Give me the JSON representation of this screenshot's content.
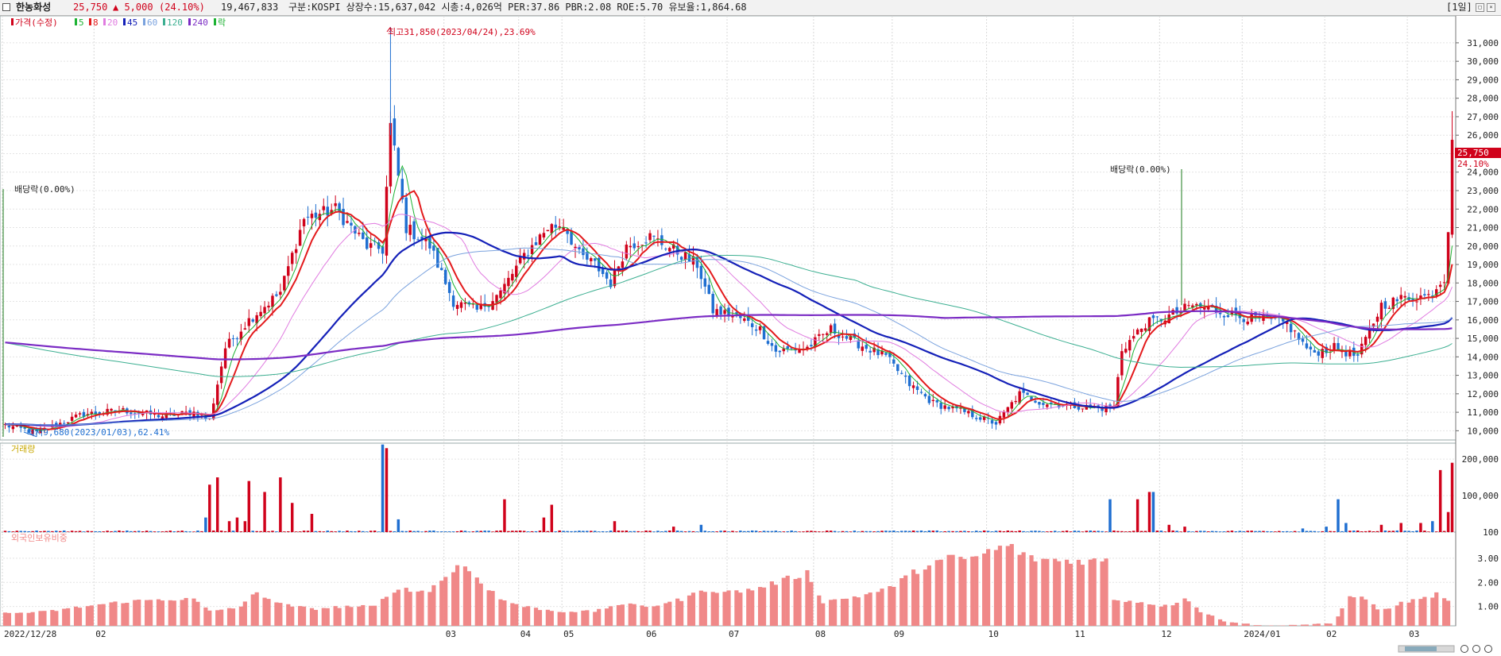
{
  "header": {
    "name": "한농화성",
    "price": "25,750",
    "change": "▲ 5,000",
    "change_pct": "(24.10%)",
    "volume": "19,467,833",
    "info": "구분:KOSPI 상장수:15,637,042 시총:4,026억 PER:37.86 PBR:2.08 ROE:5.70 유보율:1,864.68",
    "period": "[1일]"
  },
  "colors": {
    "up": "#d0021b",
    "down": "#1f6fd1",
    "ma5": "#1db233",
    "ma8": "#e31a1c",
    "ma20": "#e07be0",
    "ma45": "#1420b8",
    "ma60": "#7aa2de",
    "ma120": "#3caf91",
    "ma240": "#7b2cc4",
    "foreign": "#f08888"
  },
  "legend": [
    {
      "label": "가격(수정)",
      "color": "#d0021b"
    },
    {
      "label": "5",
      "color": "#1db233"
    },
    {
      "label": "8",
      "color": "#e31a1c"
    },
    {
      "label": "20",
      "color": "#e07be0"
    },
    {
      "label": "45",
      "color": "#1420b8"
    },
    {
      "label": "60",
      "color": "#7aa2de"
    },
    {
      "label": "120",
      "color": "#3caf91"
    },
    {
      "label": "240",
      "color": "#7b2cc4"
    },
    {
      "label": "락",
      "color": "#1db233"
    }
  ],
  "annotations": {
    "high": "최고31,850(2023/04/24),23.69%",
    "low": "최저9,680(2023/01/03),62.41%",
    "ex_div_1": "배당락(0.00%)",
    "ex_div_2": "배당락(0.00%)",
    "last_price_tag": "25,750",
    "last_pct_tag": "24.10%"
  },
  "panel_labels": {
    "volume": "거래량",
    "foreign": "외국인보유비중"
  },
  "chart_data": [
    {
      "type": "candlestick",
      "title": "",
      "y_ticks": [
        10000,
        11000,
        12000,
        13000,
        14000,
        15000,
        16000,
        17000,
        18000,
        19000,
        20000,
        21000,
        22000,
        23000,
        24000,
        25000,
        26000,
        27000,
        28000,
        29000,
        30000,
        31000
      ],
      "y_tick_labels": [
        "10,000",
        "11,000",
        "12,000",
        "13,000",
        "14,000",
        "15,000",
        "16,000",
        "17,000",
        "18,000",
        "19,000",
        "20,000",
        "21,000",
        "22,000",
        "23,000",
        "24,000",
        "25,000",
        "26,000",
        "27,000",
        "28,000",
        "29,000",
        "30,000",
        "31,000"
      ],
      "x_tick_labels": [
        "2022/12/28",
        "02",
        "03",
        "04",
        "05",
        "06",
        "07",
        "08",
        "09",
        "10",
        "11",
        "12",
        "2024/01",
        "02",
        "03"
      ],
      "anchors_close": [
        [
          0,
          10300
        ],
        [
          8,
          9900
        ],
        [
          20,
          10900
        ],
        [
          30,
          11100
        ],
        [
          40,
          10800
        ],
        [
          48,
          11000
        ],
        [
          52,
          10600
        ],
        [
          56,
          14500
        ],
        [
          62,
          16000
        ],
        [
          70,
          17500
        ],
        [
          76,
          21500
        ],
        [
          84,
          22000
        ],
        [
          92,
          20000
        ],
        [
          96,
          19800
        ],
        [
          98,
          26500
        ],
        [
          102,
          21000
        ],
        [
          108,
          20000
        ],
        [
          114,
          17000
        ],
        [
          120,
          16500
        ],
        [
          126,
          17500
        ],
        [
          132,
          19500
        ],
        [
          138,
          21000
        ],
        [
          142,
          21200
        ],
        [
          146,
          19500
        ],
        [
          150,
          19000
        ],
        [
          154,
          18000
        ],
        [
          158,
          20000
        ],
        [
          164,
          20500
        ],
        [
          170,
          19800
        ],
        [
          176,
          19000
        ],
        [
          180,
          16500
        ],
        [
          186,
          16200
        ],
        [
          192,
          15500
        ],
        [
          196,
          14300
        ],
        [
          204,
          14500
        ],
        [
          210,
          15500
        ],
        [
          216,
          14800
        ],
        [
          224,
          14000
        ],
        [
          230,
          12500
        ],
        [
          236,
          11500
        ],
        [
          244,
          11000
        ],
        [
          252,
          10400
        ],
        [
          258,
          12000
        ],
        [
          264,
          11500
        ],
        [
          270,
          11400
        ],
        [
          278,
          11200
        ],
        [
          282,
          11300
        ],
        [
          284,
          14400
        ],
        [
          290,
          15800
        ],
        [
          296,
          16200
        ],
        [
          302,
          16800
        ],
        [
          308,
          16500
        ],
        [
          314,
          16200
        ],
        [
          320,
          16000
        ],
        [
          326,
          15800
        ],
        [
          332,
          14200
        ],
        [
          338,
          14500
        ],
        [
          344,
          14000
        ],
        [
          350,
          16800
        ],
        [
          356,
          17200
        ],
        [
          362,
          17300
        ],
        [
          366,
          18300
        ],
        [
          367,
          20600
        ],
        [
          368,
          25750
        ]
      ],
      "moving_averages": [
        "5",
        "8",
        "20",
        "45",
        "60",
        "120",
        "240"
      ],
      "ylim": [
        9500,
        32200
      ]
    },
    {
      "type": "bar",
      "title": "거래량",
      "y_ticks": [
        100,
        100000,
        200000
      ],
      "y_tick_labels": [
        "100",
        "100,000",
        "200,000"
      ],
      "spikes": [
        [
          51,
          40000
        ],
        [
          52,
          130000
        ],
        [
          54,
          150000
        ],
        [
          57,
          30000
        ],
        [
          59,
          40000
        ],
        [
          61,
          30000
        ],
        [
          62,
          140000
        ],
        [
          66,
          110000
        ],
        [
          70,
          150000
        ],
        [
          73,
          80000
        ],
        [
          78,
          50000
        ],
        [
          96,
          240000
        ],
        [
          97,
          230000
        ],
        [
          100,
          35000
        ],
        [
          127,
          90000
        ],
        [
          137,
          40000
        ],
        [
          139,
          75000
        ],
        [
          155,
          30000
        ],
        [
          170,
          15000
        ],
        [
          177,
          20000
        ],
        [
          281,
          90000
        ],
        [
          288,
          90000
        ],
        [
          291,
          110000
        ],
        [
          292,
          110000
        ],
        [
          296,
          20000
        ],
        [
          300,
          15000
        ],
        [
          330,
          10000
        ],
        [
          336,
          15000
        ],
        [
          339,
          90000
        ],
        [
          341,
          25000
        ],
        [
          350,
          20000
        ],
        [
          355,
          25000
        ],
        [
          360,
          25000
        ],
        [
          363,
          30000
        ],
        [
          365,
          170000
        ],
        [
          367,
          55000
        ],
        [
          368,
          190000
        ]
      ],
      "ylim": [
        0,
        235000
      ]
    },
    {
      "type": "bar",
      "title": "외국인보유비중",
      "y_ticks": [
        1.0,
        2.0,
        3.0
      ],
      "y_tick_labels": [
        "1.00",
        "2.00",
        "3.00"
      ],
      "anchors": [
        [
          0,
          0.72
        ],
        [
          10,
          0.78
        ],
        [
          20,
          1.0
        ],
        [
          30,
          1.2
        ],
        [
          40,
          1.3
        ],
        [
          48,
          1.3
        ],
        [
          52,
          0.8
        ],
        [
          56,
          0.9
        ],
        [
          60,
          1.0
        ],
        [
          64,
          1.6
        ],
        [
          70,
          1.1
        ],
        [
          78,
          0.9
        ],
        [
          86,
          1.0
        ],
        [
          94,
          1.0
        ],
        [
          100,
          1.8
        ],
        [
          104,
          1.6
        ],
        [
          108,
          1.7
        ],
        [
          114,
          2.5
        ],
        [
          116,
          2.8
        ],
        [
          120,
          2.2
        ],
        [
          126,
          1.3
        ],
        [
          132,
          1.0
        ],
        [
          140,
          0.8
        ],
        [
          150,
          0.8
        ],
        [
          156,
          1.1
        ],
        [
          164,
          1.0
        ],
        [
          172,
          1.3
        ],
        [
          178,
          1.7
        ],
        [
          184,
          1.6
        ],
        [
          190,
          1.7
        ],
        [
          200,
          2.2
        ],
        [
          204,
          2.4
        ],
        [
          208,
          1.2
        ],
        [
          216,
          1.4
        ],
        [
          224,
          1.7
        ],
        [
          232,
          2.5
        ],
        [
          236,
          2.8
        ],
        [
          240,
          3.0
        ],
        [
          246,
          3.0
        ],
        [
          252,
          3.4
        ],
        [
          256,
          3.5
        ],
        [
          260,
          3.0
        ],
        [
          270,
          2.9
        ],
        [
          280,
          2.9
        ],
        [
          282,
          1.3
        ],
        [
          288,
          1.2
        ],
        [
          296,
          1.0
        ],
        [
          300,
          1.4
        ],
        [
          304,
          0.8
        ],
        [
          310,
          0.4
        ],
        [
          320,
          0.2
        ],
        [
          330,
          0.25
        ],
        [
          338,
          0.3
        ],
        [
          342,
          1.5
        ],
        [
          346,
          1.3
        ],
        [
          350,
          0.8
        ],
        [
          356,
          1.2
        ],
        [
          360,
          1.3
        ],
        [
          364,
          1.5
        ],
        [
          366,
          1.3
        ],
        [
          368,
          1.1
        ]
      ],
      "ylim": [
        0.2,
        3.95
      ]
    }
  ]
}
